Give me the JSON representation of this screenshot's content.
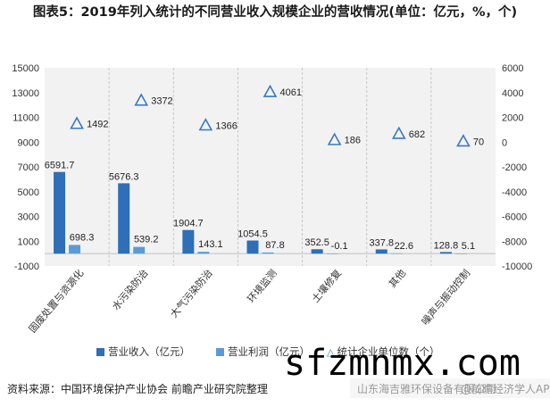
{
  "title": "图表5：2019年列入统计的不同营业收入规模企业的营收情况(单位：亿元，%，个)",
  "chart_data": {
    "type": "bar",
    "categories": [
      "固废处置与资源化",
      "水污染防治",
      "大气污染防治",
      "环境监测",
      "土壤修复",
      "其他",
      "噪声与振动控制"
    ],
    "series": [
      {
        "name": "营业收入（亿元）",
        "axis": "left",
        "type": "bar",
        "color": "#2e6fb7",
        "values": [
          6591.7,
          5676.3,
          1904.7,
          1054.5,
          352.5,
          337.8,
          128.8
        ],
        "labels": [
          "6591.7",
          "5676.3",
          "1904.7",
          "1054.5",
          "352.5",
          "337.8",
          "128.8"
        ]
      },
      {
        "name": "营业利润（亿元）",
        "axis": "left",
        "type": "bar",
        "color": "#5b9bd5",
        "values": [
          698.3,
          539.2,
          143.1,
          87.8,
          -0.1,
          22.6,
          5.1
        ],
        "labels": [
          "698.3",
          "539.2",
          "143.1",
          "87.8",
          "-0.1",
          "22.6",
          "5.1"
        ]
      },
      {
        "name": "统计企业单位数（个）",
        "axis": "right",
        "type": "scatter",
        "marker": "triangle",
        "color": "#3a78c2",
        "values": [
          1492,
          3372,
          1366,
          4061,
          186,
          682,
          70
        ],
        "labels": [
          "1492",
          "3372",
          "1366",
          "4061",
          "186",
          "682",
          "70"
        ]
      }
    ],
    "y_left": {
      "ylim": [
        -1000,
        15000
      ],
      "ticks": [
        -1000,
        1000,
        3000,
        5000,
        7000,
        9000,
        11000,
        13000,
        15000
      ]
    },
    "y_right": {
      "ylim": [
        -10000,
        6000
      ],
      "ticks": [
        -10000,
        -8000,
        -6000,
        -4000,
        -2000,
        0,
        2000,
        4000,
        6000
      ]
    },
    "legend_position": "bottom"
  },
  "source": "资料来源：中国环境保护产业协会 前瞻产业研究院整理",
  "watermark": {
    "big_text": "sfzmnmx.com",
    "ribbon_left": "山东海吉雅环保设备有限公司",
    "ribbon_right": "@前瞻经济学人APP"
  },
  "colors": {
    "revenue": "#2e6fb7",
    "profit": "#5b9bd5",
    "units": "#3a78c2",
    "plot_bg": "#f2f2f2"
  }
}
